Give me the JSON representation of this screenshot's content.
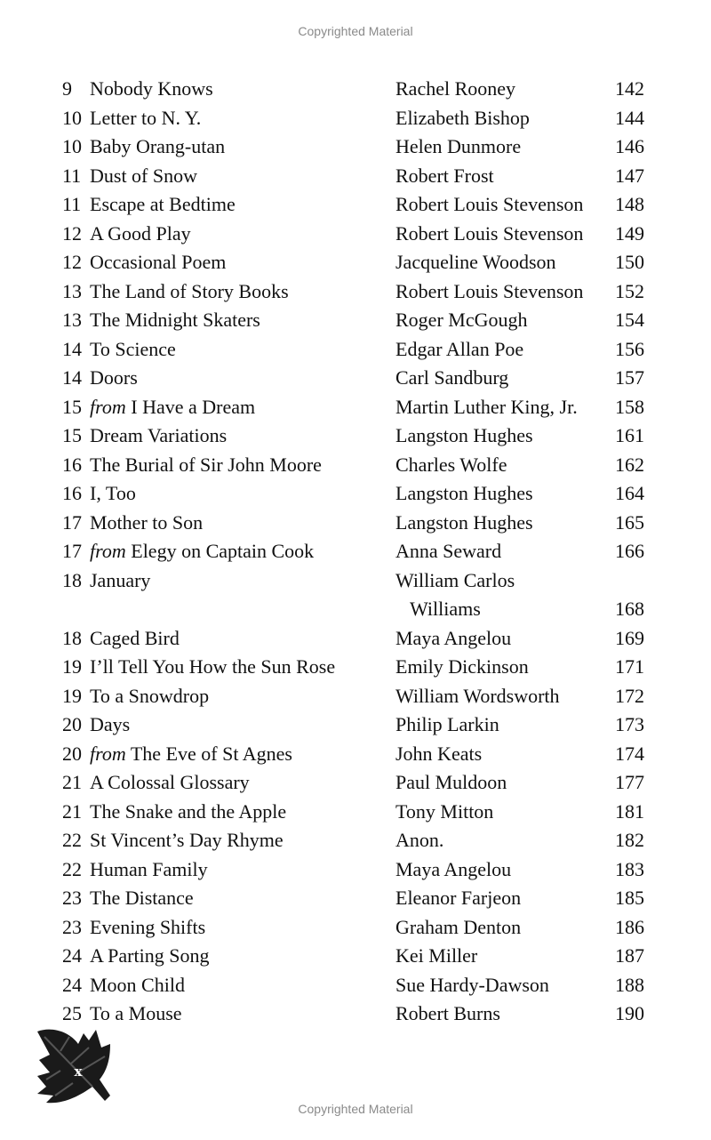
{
  "watermark_top": "Copyrighted Material",
  "watermark_bottom": "Copyrighted Material",
  "folio": "x",
  "entries": [
    {
      "num": "9",
      "prefix": "",
      "title": "Nobody Knows",
      "author": "Rachel Rooney",
      "page": "142"
    },
    {
      "num": "10",
      "prefix": "",
      "title": "Letter to N. Y.",
      "author": "Elizabeth Bishop",
      "page": "144"
    },
    {
      "num": "10",
      "prefix": "",
      "title": "Baby Orang-utan",
      "author": "Helen Dunmore",
      "page": "146"
    },
    {
      "num": "11",
      "prefix": "",
      "title": "Dust of Snow",
      "author": "Robert Frost",
      "page": "147"
    },
    {
      "num": "11",
      "prefix": "",
      "title": "Escape at Bedtime",
      "author": "Robert Louis Stevenson",
      "page": "148"
    },
    {
      "num": "12",
      "prefix": "",
      "title": "A Good Play",
      "author": "Robert Louis Stevenson",
      "page": "149"
    },
    {
      "num": "12",
      "prefix": "",
      "title": "Occasional Poem",
      "author": "Jacqueline Woodson",
      "page": "150"
    },
    {
      "num": "13",
      "prefix": "",
      "title": "The Land of Story Books",
      "author": "Robert Louis Stevenson",
      "page": "152"
    },
    {
      "num": "13",
      "prefix": "",
      "title": "The Midnight Skaters",
      "author": "Roger McGough",
      "page": "154"
    },
    {
      "num": "14",
      "prefix": "",
      "title": "To Science",
      "author": "Edgar Allan Poe",
      "page": "156"
    },
    {
      "num": "14",
      "prefix": "",
      "title": "Doors",
      "author": "Carl Sandburg",
      "page": "157"
    },
    {
      "num": "15",
      "prefix": "from",
      "title": "I Have a Dream",
      "author": "Martin Luther King, Jr.",
      "page": "158"
    },
    {
      "num": "15",
      "prefix": "",
      "title": "Dream Variations",
      "author": "Langston Hughes",
      "page": "161"
    },
    {
      "num": "16",
      "prefix": "",
      "title": "The Burial of Sir John Moore",
      "author": "Charles Wolfe",
      "page": "162"
    },
    {
      "num": "16",
      "prefix": "",
      "title": "I, Too",
      "author": "Langston Hughes",
      "page": "164"
    },
    {
      "num": "17",
      "prefix": "",
      "title": "Mother to Son",
      "author": "Langston Hughes",
      "page": "165"
    },
    {
      "num": "17",
      "prefix": "from",
      "title": "Elegy on Captain Cook",
      "author": "Anna Seward",
      "page": "166"
    },
    {
      "num": "18",
      "prefix": "",
      "title": "January",
      "author": "William Carlos",
      "author_cont": "Williams",
      "page": "168"
    },
    {
      "num": "18",
      "prefix": "",
      "title": "Caged Bird",
      "author": "Maya Angelou",
      "page": "169"
    },
    {
      "num": "19",
      "prefix": "",
      "title": "I’ll Tell You How the Sun Rose",
      "author": "Emily Dickinson",
      "page": "171"
    },
    {
      "num": "19",
      "prefix": "",
      "title": "To a Snowdrop",
      "author": "William Wordsworth",
      "page": "172"
    },
    {
      "num": "20",
      "prefix": "",
      "title": "Days",
      "author": "Philip Larkin",
      "page": "173"
    },
    {
      "num": "20",
      "prefix": "from",
      "title": "The Eve of St Agnes",
      "author": "John Keats",
      "page": "174"
    },
    {
      "num": "21",
      "prefix": "",
      "title": "A Colossal Glossary",
      "author": "Paul Muldoon",
      "page": "177"
    },
    {
      "num": "21",
      "prefix": "",
      "title": "The Snake and the Apple",
      "author": "Tony Mitton",
      "page": "181"
    },
    {
      "num": "22",
      "prefix": "",
      "title": "St Vincent’s Day Rhyme",
      "author": "Anon.",
      "page": "182"
    },
    {
      "num": "22",
      "prefix": "",
      "title": "Human Family",
      "author": "Maya Angelou",
      "page": "183"
    },
    {
      "num": "23",
      "prefix": "",
      "title": "The Distance",
      "author": "Eleanor Farjeon",
      "page": "185"
    },
    {
      "num": "23",
      "prefix": "",
      "title": "Evening Shifts",
      "author": "Graham Denton",
      "page": "186"
    },
    {
      "num": "24",
      "prefix": "",
      "title": "A Parting Song",
      "author": "Kei Miller",
      "page": "187"
    },
    {
      "num": "24",
      "prefix": "",
      "title": "Moon Child",
      "author": "Sue Hardy-Dawson",
      "page": "188"
    },
    {
      "num": "25",
      "prefix": "",
      "title": "To a Mouse",
      "author": "Robert Burns",
      "page": "190"
    }
  ]
}
